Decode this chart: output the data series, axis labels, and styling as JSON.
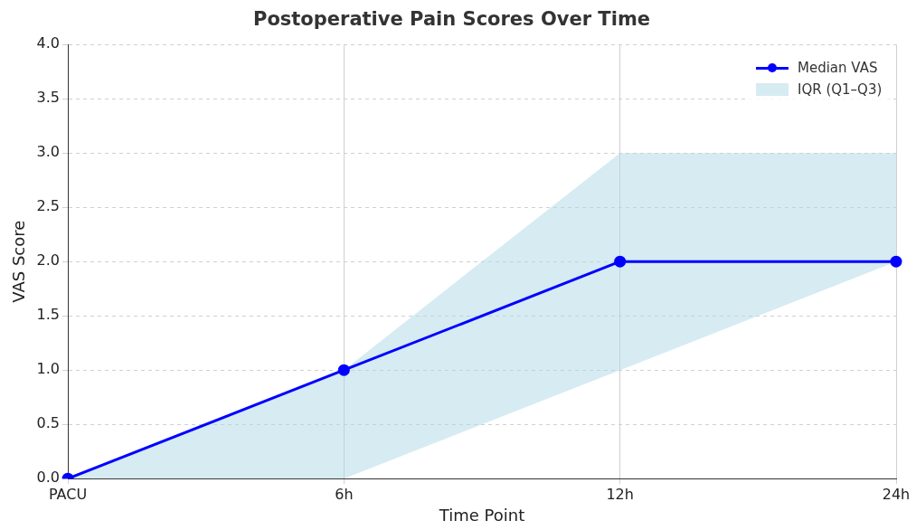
{
  "chart_data": {
    "type": "line",
    "title": "Postoperative Pain Scores Over Time",
    "xlabel": "Time Point",
    "ylabel": "VAS Score",
    "categories": [
      "PACU",
      "6h",
      "12h",
      "24h"
    ],
    "series": [
      {
        "name": "Median VAS",
        "color": "#0000ff",
        "values": [
          0,
          1,
          2,
          2
        ],
        "lower": [
          0,
          0,
          1,
          2
        ],
        "upper": [
          0,
          1,
          3,
          3
        ]
      }
    ],
    "annotations": [
      "IQR (Q1–Q3)"
    ],
    "ylim": [
      0,
      4
    ],
    "yticks": [
      {
        "value": 0,
        "label": "0.0"
      },
      {
        "value": 0.5,
        "label": "0.5"
      },
      {
        "value": 1,
        "label": "1.0"
      },
      {
        "value": 1.5,
        "label": "1.5"
      },
      {
        "value": 2,
        "label": "2.0"
      },
      {
        "value": 2.5,
        "label": "2.5"
      },
      {
        "value": 3,
        "label": "3.0"
      },
      {
        "value": 3.5,
        "label": "3.5"
      },
      {
        "value": 4,
        "label": "4.0"
      }
    ],
    "grid": true,
    "legend": "top right",
    "marker": "circle",
    "line_style": "solid"
  }
}
